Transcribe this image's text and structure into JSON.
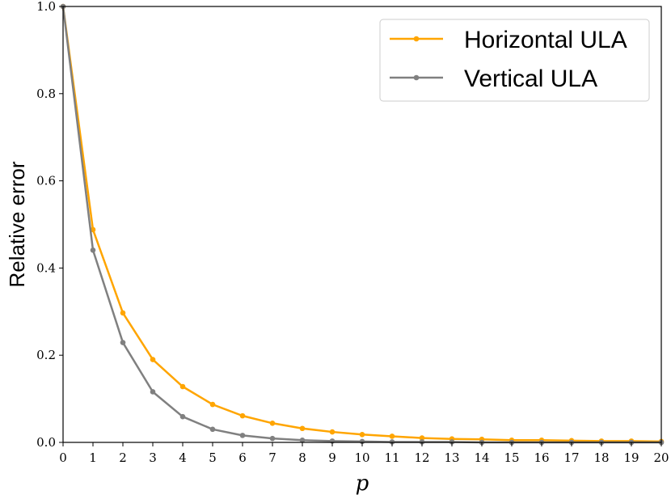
{
  "chart_data": {
    "type": "line",
    "xlabel": "p",
    "ylabel": "Relative error",
    "xlim": [
      0,
      20
    ],
    "ylim": [
      0.0,
      1.0
    ],
    "x_ticks": [
      0,
      1,
      2,
      3,
      4,
      5,
      6,
      7,
      8,
      9,
      10,
      11,
      12,
      13,
      14,
      15,
      16,
      17,
      18,
      19,
      20
    ],
    "y_ticks": [
      0.0,
      0.2,
      0.4,
      0.6,
      0.8,
      1.0
    ],
    "y_tick_labels": [
      "0.0",
      "0.2",
      "0.4",
      "0.6",
      "0.8",
      "1.0"
    ],
    "grid": false,
    "legend_position": "top-right",
    "x": [
      0,
      1,
      2,
      3,
      4,
      5,
      6,
      7,
      8,
      9,
      10,
      11,
      12,
      13,
      14,
      15,
      16,
      17,
      18,
      19,
      20
    ],
    "series": [
      {
        "name": "Horizontal ULA",
        "color": "#FFA500",
        "values": [
          1.0,
          0.488,
          0.297,
          0.19,
          0.128,
          0.087,
          0.061,
          0.044,
          0.032,
          0.024,
          0.018,
          0.014,
          0.01,
          0.008,
          0.007,
          0.005,
          0.005,
          0.004,
          0.003,
          0.003,
          0.002
        ]
      },
      {
        "name": "Vertical ULA",
        "color": "#808080",
        "values": [
          1.0,
          0.441,
          0.229,
          0.116,
          0.059,
          0.03,
          0.016,
          0.009,
          0.005,
          0.003,
          0.002,
          0.001,
          0.001,
          0.001,
          0.0,
          0.0,
          0.0,
          0.0,
          0.0,
          0.0,
          0.0
        ]
      }
    ]
  }
}
